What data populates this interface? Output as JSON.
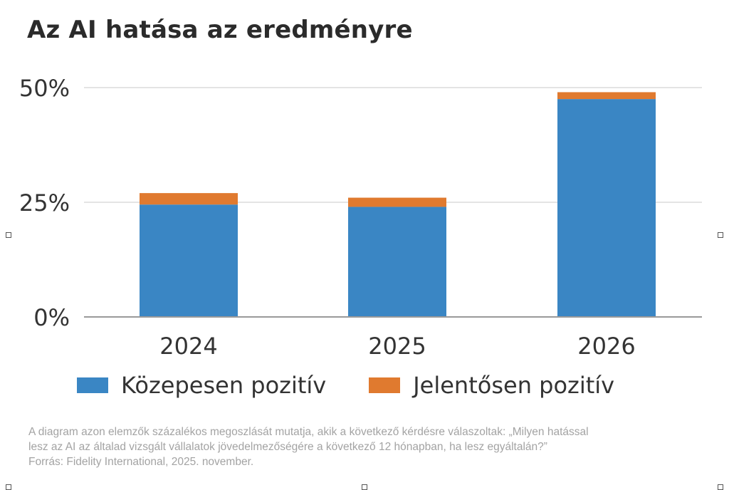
{
  "chart_data": {
    "type": "bar",
    "stacked": true,
    "title": "Az AI hatása az eredményre",
    "categories": [
      "2024",
      "2025",
      "2026"
    ],
    "series": [
      {
        "name": "Közepesen pozitív",
        "color": "#3a86c4",
        "values": [
          24.5,
          24,
          47.5
        ]
      },
      {
        "name": "Jelentősen pozitív",
        "color": "#e07a2f",
        "values": [
          2.5,
          2,
          1.5
        ]
      }
    ],
    "yticks": [
      "0%",
      "25%",
      "50%"
    ],
    "ytick_values": [
      0,
      25,
      50
    ],
    "ylim": [
      0,
      50
    ],
    "grid": true,
    "legend": "bottom-left"
  },
  "footnote": {
    "line1": "A diagram azon elemzők százalékos megoszlását mutatja, akik a következő kérdésre válaszoltak: „Milyen hatással",
    "line2": "lesz az AI az általad vizsgált vállalatok jövedelmezőségére a következő 12 hónapban, ha lesz egyáltalán?”",
    "line3": "Forrás: Fidelity International, 2025. november."
  }
}
